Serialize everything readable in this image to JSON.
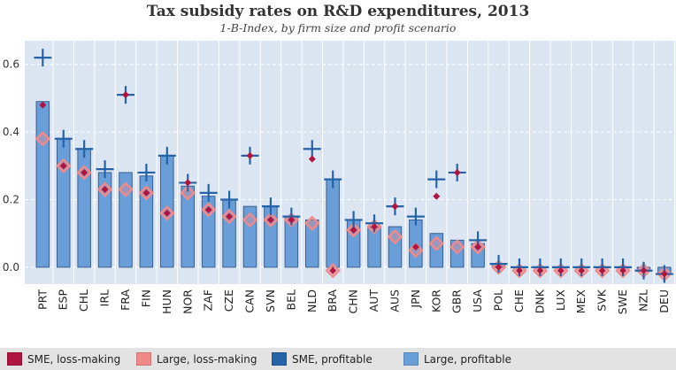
{
  "title": "Tax subsidy rates on R&D expenditures, 2013",
  "subtitle": "1-B-Index, by firm size and profit scenario",
  "colors": {
    "plot_bg": "#dbe6f2",
    "grid": "#ffffff",
    "bar_fill": "#6a9ed8",
    "bar_stroke": "#3a5f8e",
    "sme_loss": "#b01540",
    "large_loss": "#f08a8a",
    "sme_profit": "#2563a8",
    "large_profit": "#6a9ed8"
  },
  "legend": [
    {
      "label": "SME, loss-making",
      "color": "#b01540"
    },
    {
      "label": "Large, loss-making",
      "color": "#f08a8a"
    },
    {
      "label": "SME, profitable",
      "color": "#2563a8"
    },
    {
      "label": "Large, profitable",
      "color": "#6a9ed8"
    }
  ],
  "chart_data": {
    "type": "bar",
    "title": "Tax subsidy rates on R&D expenditures, 2013",
    "subtitle": "1-B-Index, by firm size and profit scenario",
    "xlabel": "",
    "ylabel": "",
    "ylim": [
      -0.05,
      0.67
    ],
    "yticks": [
      0.0,
      0.2,
      0.4,
      0.6
    ],
    "ytick_labels": [
      "0.0",
      "0.2",
      "0.4",
      "0.6"
    ],
    "grid": true,
    "legend_position": "bottom",
    "categories": [
      "PRT",
      "ESP",
      "CHL",
      "IRL",
      "FRA",
      "FIN",
      "HUN",
      "NOR",
      "ZAF",
      "CZE",
      "CAN",
      "SVN",
      "BEL",
      "NLD",
      "BRA",
      "CHN",
      "AUT",
      "AUS",
      "JPN",
      "KOR",
      "GBR",
      "USA",
      "POL",
      "CHE",
      "DNK",
      "LUX",
      "MEX",
      "SVK",
      "SWE",
      "NZL",
      "DEU"
    ],
    "series": [
      {
        "name": "Large, profitable",
        "mark": "bar",
        "values": [
          0.49,
          0.38,
          0.35,
          0.28,
          0.28,
          0.27,
          0.33,
          0.24,
          0.21,
          0.2,
          0.18,
          0.18,
          0.15,
          0.14,
          0.26,
          0.14,
          0.12,
          0.12,
          0.14,
          0.1,
          0.08,
          0.07,
          0.01,
          0.0,
          0.0,
          0.0,
          0.0,
          0.0,
          0.0,
          -0.01,
          -0.02
        ]
      },
      {
        "name": "SME, profitable",
        "mark": "plus",
        "values": [
          0.62,
          0.38,
          0.35,
          0.29,
          0.51,
          0.28,
          0.33,
          0.25,
          0.22,
          0.2,
          0.33,
          0.18,
          0.15,
          0.35,
          0.26,
          0.14,
          0.13,
          0.18,
          0.15,
          0.26,
          0.28,
          0.08,
          0.01,
          0.0,
          0.0,
          0.0,
          0.0,
          0.0,
          0.0,
          -0.01,
          -0.02
        ]
      },
      {
        "name": "SME, loss-making",
        "mark": "diamond",
        "values": [
          0.48,
          0.3,
          0.28,
          0.23,
          0.51,
          0.22,
          0.16,
          0.25,
          0.17,
          0.15,
          0.33,
          0.14,
          0.14,
          0.32,
          -0.01,
          0.11,
          0.12,
          0.18,
          0.06,
          0.21,
          0.28,
          0.06,
          0.0,
          -0.01,
          -0.01,
          -0.01,
          -0.01,
          -0.01,
          -0.01,
          -0.01,
          -0.02
        ]
      },
      {
        "name": "Large, loss-making",
        "mark": "hollow-diamond",
        "values": [
          0.38,
          0.3,
          0.28,
          0.23,
          0.23,
          0.22,
          0.16,
          0.22,
          0.17,
          0.15,
          0.14,
          0.14,
          0.14,
          0.13,
          -0.01,
          0.11,
          0.12,
          0.09,
          0.05,
          0.07,
          0.06,
          0.06,
          0.0,
          -0.01,
          -0.01,
          -0.01,
          -0.01,
          -0.01,
          -0.01,
          -0.01,
          -0.02
        ]
      }
    ]
  }
}
